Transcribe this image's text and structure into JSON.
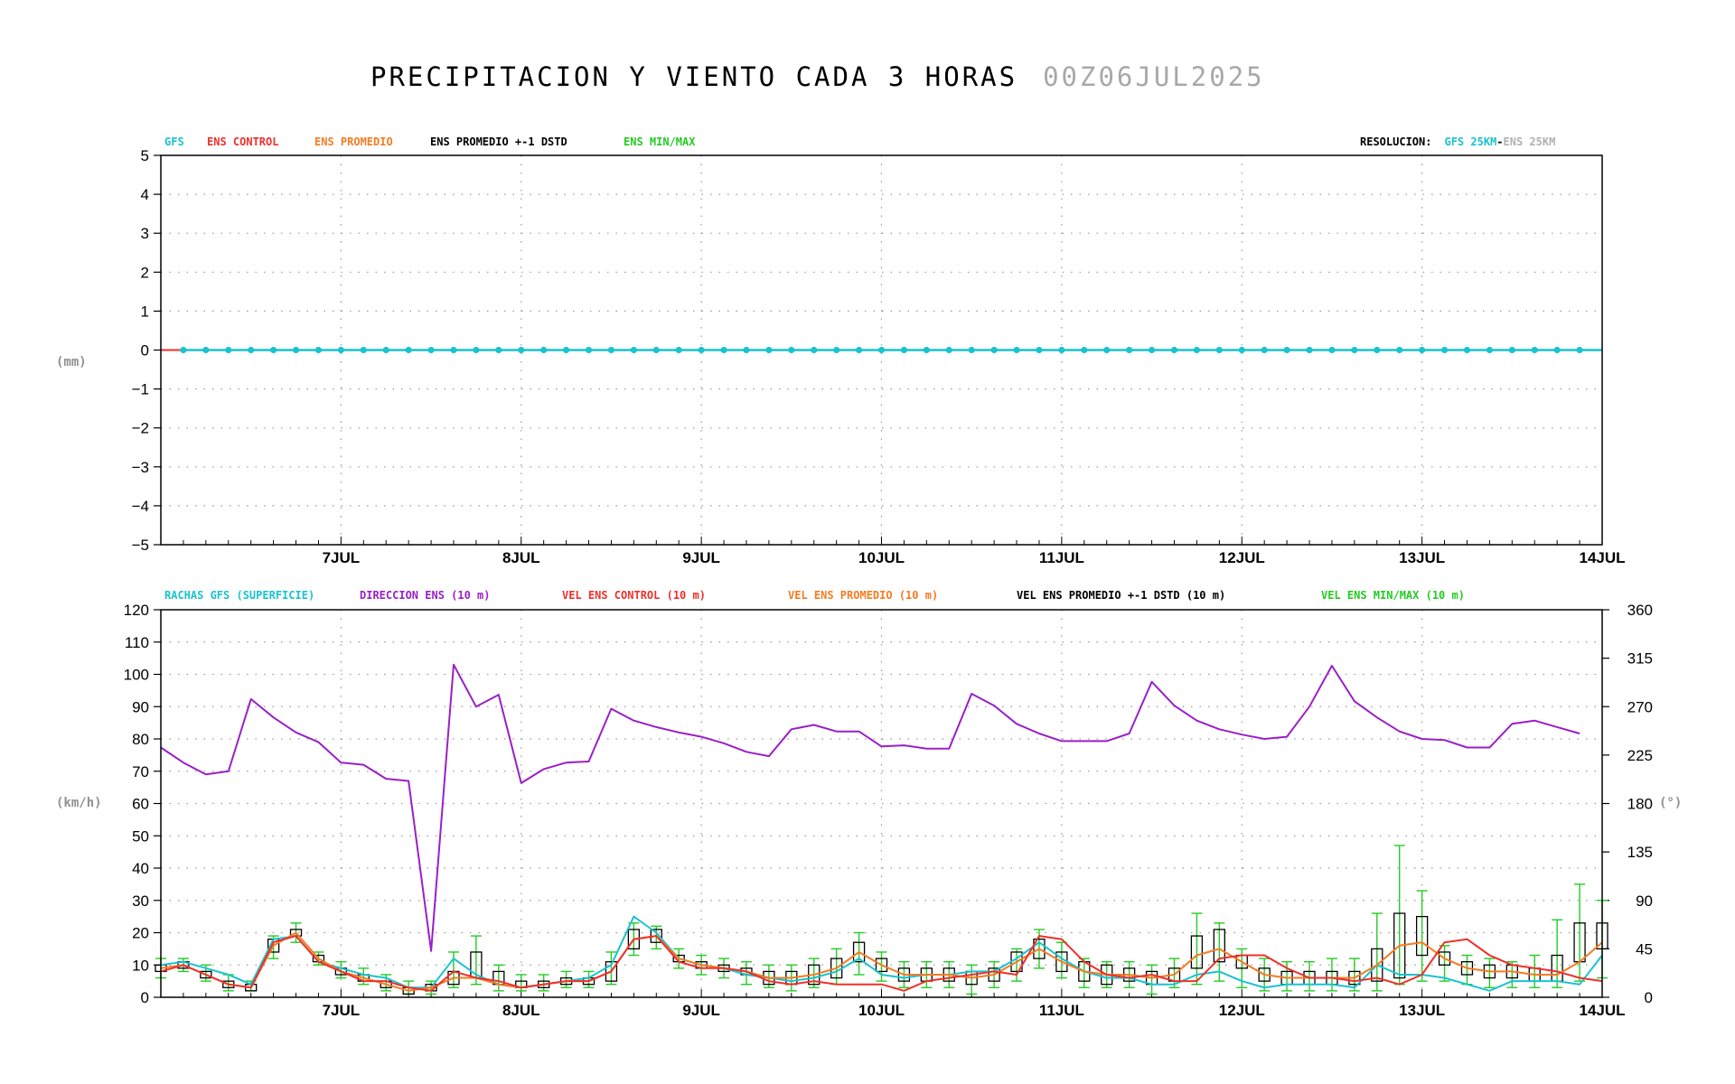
{
  "title": {
    "main": "PRECIPITACION Y VIENTO CADA 3 HORAS",
    "run": "00Z06JUL2025"
  },
  "colors": {
    "gfs": "#19c3cf",
    "ens_control": "#f0302a",
    "ens_promedio": "#f47b22",
    "ens_std": "#000000",
    "ens_minmax": "#22cc22",
    "direccion": "#9a1fc8",
    "grey": "#b0b0b0"
  },
  "precip": {
    "legend": {
      "gfs": "GFS",
      "control": "ENS CONTROL",
      "promedio": "ENS PROMEDIO",
      "std": "ENS PROMEDIO +-1 DSTD",
      "minmax": "ENS MIN/MAX",
      "res_label": "RESOLUCION:",
      "res_gfs": "GFS 25KM",
      "res_sep": "-",
      "res_ens": "ENS 25KM"
    },
    "unit": "(mm)",
    "yticks": [
      "5",
      "4",
      "3",
      "2",
      "1",
      "0",
      "−1",
      "−2",
      "−3",
      "−4",
      "−5"
    ]
  },
  "wind": {
    "legend": {
      "rachas": "RACHAS GFS (SUPERFICIE)",
      "dir": "DIRECCION ENS (10 m)",
      "control": "VEL ENS CONTROL (10 m)",
      "promedio": "VEL ENS PROMEDIO (10 m)",
      "std": "VEL ENS PROMEDIO +-1 DSTD (10 m)",
      "minmax": "VEL ENS MIN/MAX (10 m)"
    },
    "unit_left": "(km/h)",
    "unit_right": "(°)",
    "yticks_left": [
      "120",
      "110",
      "100",
      "90",
      "80",
      "70",
      "60",
      "50",
      "40",
      "30",
      "20",
      "10",
      "0"
    ],
    "yticks_right": [
      "360",
      "315",
      "270",
      "225",
      "180",
      "135",
      "90",
      "45",
      "0"
    ]
  },
  "chart_data": [
    {
      "type": "line",
      "x": {
        "start": "2025-07-06 00Z",
        "end": "2025-07-14 00Z",
        "step_hours": 3,
        "tick_labels": [
          "7JUL",
          "8JUL",
          "9JUL",
          "10JUL",
          "11JUL",
          "12JUL",
          "13JUL",
          "14JUL"
        ]
      },
      "ylabel": "(mm)",
      "ylim": [
        -5,
        5
      ],
      "grid": true,
      "series": [
        {
          "name": "GFS",
          "values": [
            0,
            0,
            0,
            0,
            0,
            0,
            0,
            0,
            0,
            0,
            0,
            0,
            0,
            0,
            0,
            0,
            0,
            0,
            0,
            0,
            0,
            0,
            0,
            0,
            0,
            0,
            0,
            0,
            0,
            0,
            0,
            0,
            0,
            0,
            0,
            0,
            0,
            0,
            0,
            0,
            0,
            0,
            0,
            0,
            0,
            0,
            0,
            0,
            0,
            0,
            0,
            0,
            0,
            0,
            0,
            0,
            0,
            0,
            0,
            0,
            0,
            0,
            0,
            0,
            0
          ]
        },
        {
          "name": "ENS CONTROL",
          "values": [
            0,
            0
          ]
        }
      ]
    },
    {
      "type": "line",
      "x": {
        "start": "2025-07-06 00Z",
        "end": "2025-07-14 00Z",
        "step_hours": 3,
        "tick_labels": [
          "7JUL",
          "8JUL",
          "9JUL",
          "10JUL",
          "11JUL",
          "12JUL",
          "13JUL",
          "14JUL"
        ]
      },
      "ylabel": "(km/h)",
      "ylim": [
        0,
        120
      ],
      "y2label": "(°)",
      "y2lim": [
        0,
        360
      ],
      "grid": true,
      "series": [
        {
          "name": "RACHAS GFS (SUPERFICIE)",
          "axis": "left",
          "values": [
            10,
            11,
            9,
            7,
            4,
            18,
            19,
            11,
            9,
            7,
            6,
            3,
            3,
            12,
            7,
            4,
            3,
            4,
            5,
            6,
            10,
            25,
            20,
            12,
            10,
            9,
            7,
            6,
            5,
            6,
            8,
            12,
            7,
            6,
            7,
            7,
            8,
            8,
            12,
            17,
            12,
            8,
            6,
            6,
            4,
            4,
            7,
            8,
            5,
            3,
            4,
            4,
            4,
            3,
            10,
            7,
            7,
            6,
            4,
            2,
            5,
            5,
            5,
            4,
            13,
            19,
            13
          ]
        },
        {
          "name": "DIRECCION ENS (10 m)",
          "axis": "right",
          "values": [
            232,
            218,
            207,
            210,
            277,
            260,
            246,
            237,
            218,
            216,
            203,
            201,
            43,
            309,
            270,
            281,
            199,
            212,
            218,
            219,
            268,
            257,
            251,
            246,
            242,
            236,
            228,
            224,
            249,
            253,
            247,
            247,
            233,
            234,
            231,
            231,
            282,
            271,
            254,
            245,
            238,
            238,
            238,
            245,
            293,
            271,
            257,
            249,
            244,
            240,
            242,
            270,
            308,
            275,
            260,
            247,
            240,
            239,
            232,
            232,
            254,
            257,
            251,
            245
          ]
        },
        {
          "name": "VEL ENS CONTROL (10 m)",
          "axis": "left",
          "values": [
            8,
            10,
            7,
            4,
            3,
            17,
            19,
            11,
            8,
            5,
            5,
            3,
            2,
            8,
            6,
            5,
            3,
            4,
            5,
            5,
            8,
            18,
            19,
            11,
            9,
            9,
            8,
            5,
            4,
            5,
            4,
            4,
            4,
            2,
            5,
            6,
            7,
            8,
            7,
            19,
            18,
            11,
            7,
            6,
            7,
            5,
            5,
            12,
            13,
            13,
            9,
            6,
            6,
            5,
            6,
            4,
            7,
            17,
            18,
            13,
            10,
            9,
            8,
            6,
            5,
            10,
            17,
            18,
            11
          ]
        },
        {
          "name": "VEL ENS PROMEDIO (10 m)",
          "axis": "left",
          "values": [
            9,
            10,
            7,
            4,
            3,
            16,
            20,
            12,
            8,
            6,
            4,
            2,
            3,
            6,
            6,
            4,
            3,
            4,
            5,
            5,
            8,
            18,
            19,
            12,
            10,
            9,
            8,
            6,
            6,
            7,
            9,
            14,
            10,
            7,
            7,
            7,
            6,
            7,
            11,
            15,
            11,
            8,
            7,
            7,
            6,
            7,
            13,
            15,
            11,
            7,
            6,
            6,
            6,
            6,
            10,
            16,
            17,
            12,
            9,
            8,
            8,
            7,
            7,
            11,
            17,
            17,
            12
          ]
        },
        {
          "name": "VEL ENS PROMEDIO +-1 DSTD (10 m)",
          "axis": "left",
          "box_mean": [
            9,
            10,
            7,
            4,
            3,
            16,
            20,
            12,
            8,
            6,
            4,
            2,
            3,
            6,
            10,
            6,
            4,
            4,
            5,
            5,
            8,
            18,
            19,
            12,
            10,
            9,
            8,
            6,
            6,
            7,
            9,
            14,
            10,
            7,
            7,
            7,
            6,
            7,
            11,
            15,
            11,
            8,
            7,
            7,
            6,
            7,
            14,
            16,
            11,
            7,
            6,
            6,
            6,
            6,
            10,
            16,
            19,
            12,
            9,
            8,
            8,
            7,
            9,
            17,
            19,
            12
          ],
          "box_half": [
            1,
            1,
            1,
            1,
            1,
            2,
            1,
            1,
            1,
            1,
            1,
            1,
            1,
            2,
            4,
            2,
            1,
            1,
            1,
            1,
            3,
            3,
            2,
            1,
            1,
            1,
            1,
            2,
            2,
            3,
            3,
            3,
            2,
            2,
            2,
            2,
            2,
            2,
            3,
            3,
            3,
            3,
            3,
            2,
            2,
            2,
            5,
            5,
            2,
            2,
            2,
            2,
            2,
            2,
            5,
            10,
            6,
            2,
            2,
            2,
            2,
            2,
            4,
            6,
            4,
            2
          ]
        },
        {
          "name": "VEL ENS MIN/MAX (10 m)",
          "axis": "left",
          "min": [
            6,
            8,
            5,
            2,
            2,
            12,
            17,
            10,
            6,
            4,
            2,
            1,
            1,
            3,
            4,
            2,
            2,
            2,
            3,
            3,
            4,
            13,
            15,
            9,
            7,
            6,
            4,
            3,
            2,
            3,
            4,
            7,
            5,
            3,
            3,
            3,
            1,
            3,
            5,
            9,
            6,
            3,
            3,
            3,
            1,
            3,
            4,
            5,
            3,
            2,
            2,
            2,
            2,
            2,
            2,
            4,
            5,
            5,
            4,
            3,
            3,
            3,
            3,
            5,
            6,
            6
          ],
          "max": [
            12,
            12,
            10,
            7,
            5,
            19,
            23,
            14,
            11,
            9,
            7,
            5,
            5,
            14,
            19,
            10,
            7,
            7,
            8,
            8,
            14,
            23,
            22,
            15,
            13,
            12,
            11,
            10,
            10,
            12,
            15,
            20,
            14,
            11,
            11,
            11,
            10,
            11,
            15,
            21,
            17,
            12,
            11,
            11,
            10,
            12,
            26,
            23,
            15,
            12,
            11,
            11,
            12,
            12,
            26,
            47,
            33,
            16,
            13,
            12,
            11,
            13,
            24,
            35,
            30,
            18
          ]
        }
      ]
    }
  ]
}
